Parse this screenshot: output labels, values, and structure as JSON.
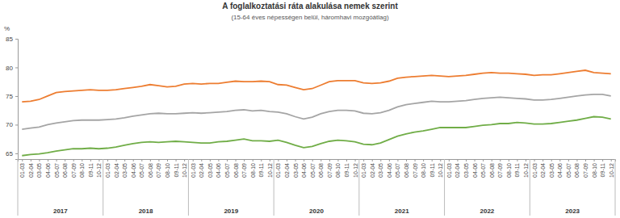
{
  "chart_data": {
    "type": "line",
    "title": "A foglalkoztatási ráta alakulása nemek szerint",
    "subtitle": "(15-64 éves népességen belül, háromhavi mozgóátlag)",
    "y_label": "%",
    "categories": [
      "01-03",
      "02-04",
      "03-05",
      "04-06",
      "05-07",
      "06-08",
      "07-09",
      "08-10",
      "09-11",
      "10-12",
      "01-03",
      "02-04",
      "03-05",
      "04-06",
      "05-07",
      "06-08",
      "07-09",
      "08-10",
      "09-11",
      "10-12",
      "01-03",
      "02-04",
      "03-05",
      "04-06",
      "05-07",
      "06-08",
      "07-09",
      "08-10",
      "09-11",
      "10-12",
      "01-03",
      "02-04",
      "03-05",
      "04-06",
      "05-07",
      "06-08",
      "07-09",
      "08-10",
      "09-11",
      "10-12",
      "01-03",
      "02-04",
      "03-05",
      "04-06",
      "05-07",
      "06-08",
      "07-09",
      "08-10",
      "09-11",
      "10-12",
      "01-03",
      "02-04",
      "03-05",
      "04-06",
      "05-07",
      "06-08",
      "07-09",
      "08-10",
      "09-11",
      "10-12",
      "01-03",
      "02-04",
      "03-05",
      "04-06",
      "05-07",
      "06-08",
      "07-09",
      "08-10",
      "09-11",
      "10-12"
    ],
    "years": [
      "2017",
      "2018",
      "2019",
      "2020",
      "2021",
      "2022",
      "2023"
    ],
    "series": [
      {
        "color": "#ed7d31",
        "values": [
          74.0,
          74.1,
          74.4,
          75.0,
          75.6,
          75.8,
          75.9,
          76.0,
          76.1,
          76.0,
          76.0,
          76.1,
          76.3,
          76.5,
          76.7,
          77.0,
          76.8,
          76.6,
          76.7,
          77.1,
          77.2,
          77.1,
          77.2,
          77.2,
          77.4,
          77.6,
          77.5,
          77.5,
          77.6,
          77.5,
          77.0,
          76.9,
          76.5,
          76.1,
          76.3,
          76.9,
          77.5,
          77.7,
          77.7,
          77.7,
          77.3,
          77.2,
          77.3,
          77.6,
          78.1,
          78.3,
          78.4,
          78.5,
          78.6,
          78.5,
          78.4,
          78.5,
          78.6,
          78.8,
          79.0,
          79.1,
          79.0,
          79.0,
          78.9,
          78.8,
          78.6,
          78.7,
          78.7,
          78.9,
          79.1,
          79.3,
          79.5,
          79.1,
          79.0,
          78.9
        ]
      },
      {
        "color": "#a5a5a5",
        "values": [
          69.2,
          69.4,
          69.6,
          70.0,
          70.3,
          70.5,
          70.7,
          70.8,
          70.8,
          70.8,
          70.9,
          71.0,
          71.2,
          71.5,
          71.7,
          71.9,
          72.0,
          71.9,
          71.9,
          72.0,
          72.1,
          72.0,
          72.1,
          72.2,
          72.3,
          72.5,
          72.6,
          72.4,
          72.5,
          72.3,
          72.2,
          71.9,
          71.4,
          71.0,
          71.3,
          71.9,
          72.3,
          72.5,
          72.5,
          72.4,
          72.0,
          71.9,
          72.1,
          72.5,
          73.1,
          73.5,
          73.7,
          73.9,
          74.1,
          74.0,
          74.0,
          74.1,
          74.2,
          74.4,
          74.6,
          74.7,
          74.8,
          74.7,
          74.6,
          74.5,
          74.3,
          74.3,
          74.4,
          74.6,
          74.8,
          75.0,
          75.2,
          75.3,
          75.3,
          75.0
        ]
      },
      {
        "color": "#70ad47",
        "values": [
          64.6,
          64.8,
          64.9,
          65.1,
          65.4,
          65.6,
          65.8,
          65.8,
          65.9,
          65.8,
          65.9,
          66.1,
          66.4,
          66.7,
          66.9,
          67.0,
          66.9,
          67.0,
          67.1,
          67.0,
          66.9,
          66.8,
          66.8,
          67.0,
          67.1,
          67.3,
          67.5,
          67.2,
          67.2,
          67.1,
          67.3,
          66.9,
          66.4,
          66.0,
          66.2,
          66.7,
          67.1,
          67.3,
          67.2,
          67.0,
          66.6,
          66.5,
          66.8,
          67.4,
          68.0,
          68.4,
          68.7,
          68.9,
          69.2,
          69.5,
          69.5,
          69.5,
          69.5,
          69.7,
          69.9,
          70.0,
          70.2,
          70.2,
          70.4,
          70.3,
          70.1,
          70.1,
          70.2,
          70.4,
          70.6,
          70.8,
          71.1,
          71.4,
          71.3,
          71.0
        ]
      }
    ],
    "ylim": [
      64,
      85
    ],
    "yticks": [
      65,
      70,
      75,
      80,
      85
    ],
    "grid": false
  }
}
